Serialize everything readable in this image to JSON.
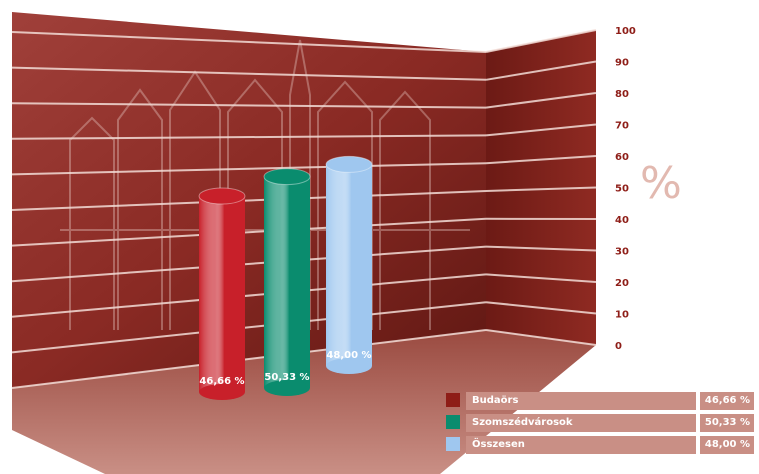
{
  "chart_data": {
    "type": "bar",
    "categories": [
      "Budaörs",
      "Szomszédvárosok",
      "Összesen"
    ],
    "values": [
      46.66,
      50.33,
      48.0
    ],
    "value_labels": [
      "46,66 %",
      "50,33 %",
      "48,00 %"
    ],
    "ylim": [
      0,
      100
    ],
    "yticks": [
      "0",
      "10",
      "20",
      "30",
      "40",
      "50",
      "60",
      "70",
      "80",
      "90",
      "100"
    ],
    "ylabel": "%",
    "colors": [
      "#c8202a",
      "#0a8c6e",
      "#9fc7ef"
    ],
    "legend": {
      "position": "bottom-right",
      "items": [
        {
          "label": "Budaörs",
          "value": "46,66 %",
          "color": "#8e1d17"
        },
        {
          "label": "Szomszédvárosok",
          "value": "50,33 %",
          "color": "#0a8c6e"
        },
        {
          "label": "Összesen",
          "value": "48,00 %",
          "color": "#9fc7ef"
        }
      ]
    },
    "grid": true
  }
}
